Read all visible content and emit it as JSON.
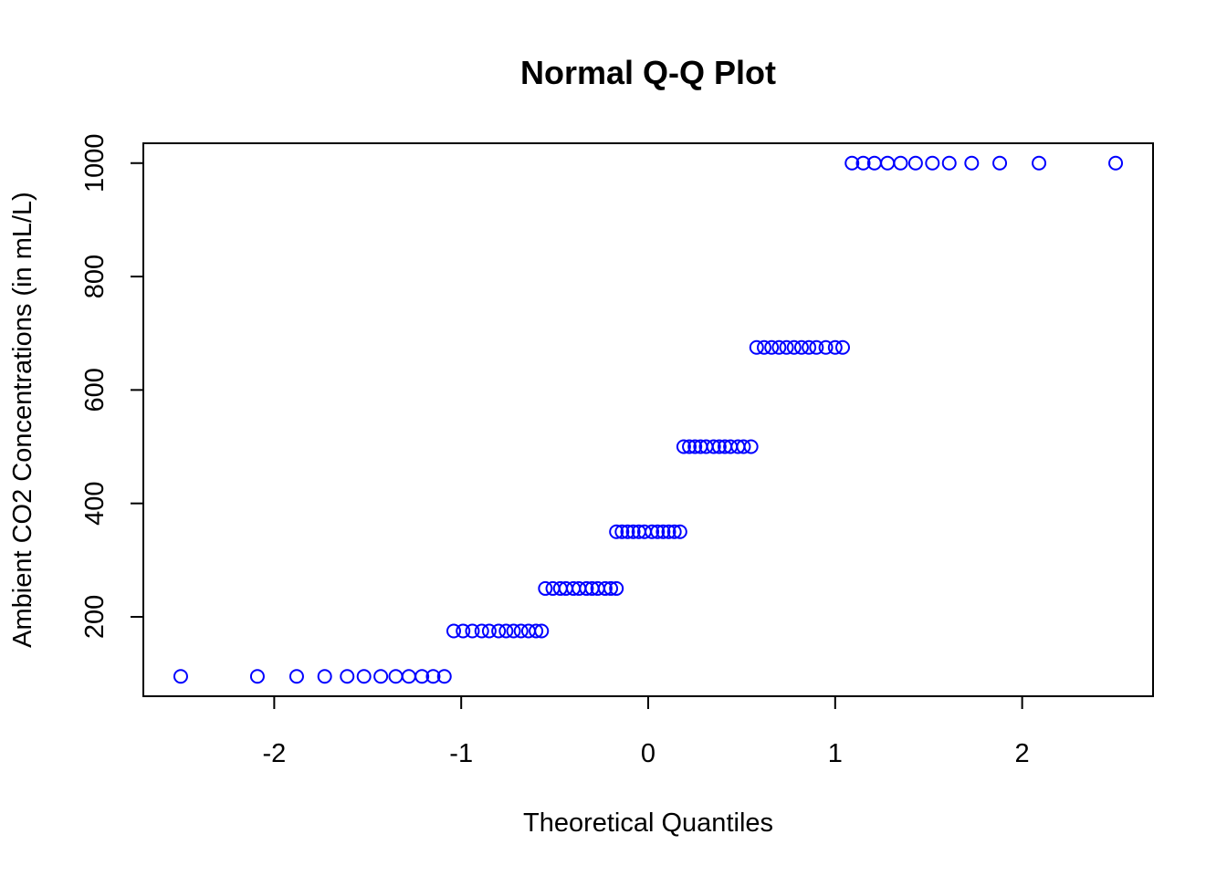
{
  "chart_data": {
    "type": "scatter",
    "title": "Normal Q-Q Plot",
    "xlabel": "Theoretical Quantiles",
    "ylabel": "Ambient CO2 Concentrations (in mL/L)",
    "xlim": [
      -2.7,
      2.7
    ],
    "ylim": [
      60,
      1035
    ],
    "x_ticks": [
      -2,
      -1,
      0,
      1,
      2
    ],
    "x_tick_labels": [
      "-2",
      "-1",
      "0",
      "1",
      "2"
    ],
    "y_ticks": [
      200,
      400,
      600,
      800,
      1000
    ],
    "y_tick_labels": [
      "200",
      "400",
      "600",
      "800",
      "1000"
    ],
    "grid": false,
    "legend": "none",
    "marker": "open-circle",
    "point_color": "#0000FF",
    "series": [
      {
        "x": [
          -2.5,
          -2.09,
          -1.88,
          -1.73,
          -1.61,
          -1.52,
          -1.43,
          -1.35,
          -1.28,
          -1.21,
          -1.15,
          -1.09,
          -1.04,
          -0.99,
          -0.94,
          -0.89,
          -0.85,
          -0.8,
          -0.76,
          -0.72,
          -0.68,
          -0.64,
          -0.6,
          -0.57,
          -0.55,
          -0.51,
          -0.47,
          -0.44,
          -0.4,
          -0.37,
          -0.33,
          -0.3,
          -0.27,
          -0.23,
          -0.2,
          -0.17,
          -0.17,
          -0.14,
          -0.11,
          -0.08,
          -0.05,
          -0.02,
          0.02,
          0.05,
          0.08,
          0.11,
          0.14,
          0.17,
          0.19,
          0.22,
          0.25,
          0.28,
          0.31,
          0.35,
          0.38,
          0.41,
          0.44,
          0.48,
          0.51,
          0.55,
          0.58,
          0.62,
          0.66,
          0.7,
          0.74,
          0.78,
          0.82,
          0.86,
          0.9,
          0.95,
          1.0,
          1.04,
          1.09,
          1.15,
          1.21,
          1.28,
          1.35,
          1.43,
          1.52,
          1.61,
          1.73,
          1.88,
          2.09,
          2.5
        ],
        "y": [
          95,
          95,
          95,
          95,
          95,
          95,
          95,
          95,
          95,
          95,
          95,
          95,
          175,
          175,
          175,
          175,
          175,
          175,
          175,
          175,
          175,
          175,
          175,
          175,
          250,
          250,
          250,
          250,
          250,
          250,
          250,
          250,
          250,
          250,
          250,
          250,
          350,
          350,
          350,
          350,
          350,
          350,
          350,
          350,
          350,
          350,
          350,
          350,
          500,
          500,
          500,
          500,
          500,
          500,
          500,
          500,
          500,
          500,
          500,
          500,
          675,
          675,
          675,
          675,
          675,
          675,
          675,
          675,
          675,
          675,
          675,
          675,
          1000,
          1000,
          1000,
          1000,
          1000,
          1000,
          1000,
          1000,
          1000,
          1000,
          1000,
          1000
        ]
      }
    ]
  }
}
